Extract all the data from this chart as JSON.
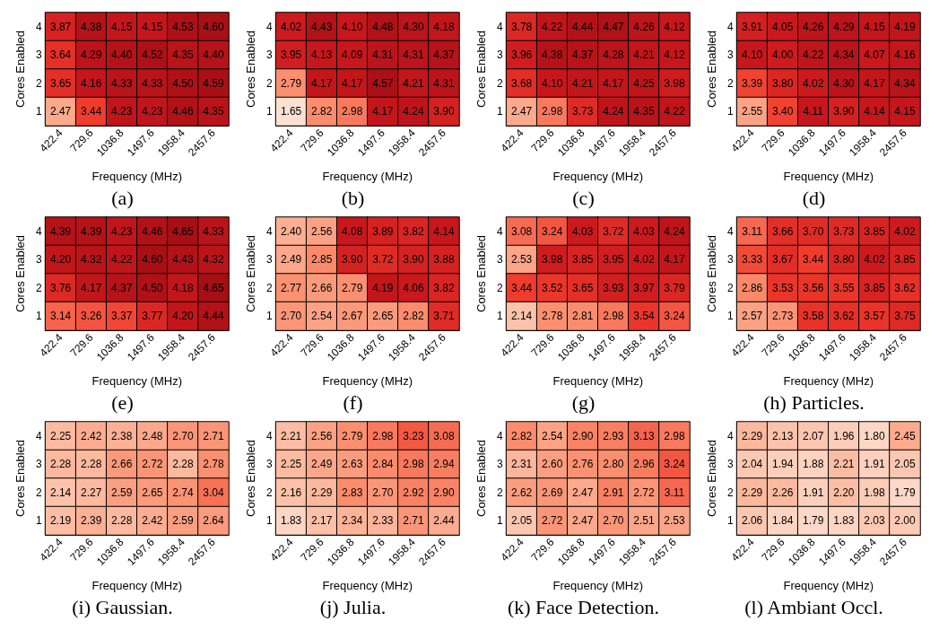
{
  "chart_data": [
    {
      "type": "heatmap",
      "title": "(a)",
      "xlabel": "Frequency (MHz)",
      "ylabel": "Cores Enabled",
      "categories": [
        "422.4",
        "729.6",
        "1036.8",
        "1497.6",
        "1958.4",
        "2457.6"
      ],
      "y_categories": [
        "4",
        "3",
        "2",
        "1"
      ],
      "cells": [
        [
          3.87,
          4.38,
          4.15,
          4.15,
          4.53,
          4.6
        ],
        [
          3.64,
          4.29,
          4.4,
          4.52,
          4.35,
          4.4
        ],
        [
          3.65,
          4.16,
          4.33,
          4.33,
          4.5,
          4.59
        ],
        [
          2.47,
          3.44,
          4.23,
          4.23,
          4.46,
          4.35
        ]
      ],
      "cell_labels": [
        [
          "3.87",
          "4.38",
          "4.15",
          "4.15",
          "4.53",
          "4.60"
        ],
        [
          "3.64",
          "4.29",
          "4.40",
          "4.52",
          "4.35",
          "4.40"
        ],
        [
          "3.65",
          "4.16",
          "4.33",
          "4.33",
          "4.50",
          "4.59"
        ],
        [
          "2.47",
          "3.44",
          "4.23",
          "4.23",
          "4.46",
          "4.35"
        ]
      ]
    },
    {
      "type": "heatmap",
      "title": "(b)",
      "xlabel": "Frequency (MHz)",
      "ylabel": "Cores Enabled",
      "categories": [
        "422.4",
        "729.6",
        "1036.8",
        "1497.6",
        "1958.4",
        "2457.6"
      ],
      "y_categories": [
        "4",
        "3",
        "2",
        "1"
      ],
      "cells": [
        [
          4.02,
          4.43,
          4.1,
          4.48,
          4.3,
          4.18
        ],
        [
          3.95,
          4.13,
          4.09,
          4.31,
          4.31,
          4.37
        ],
        [
          2.79,
          4.17,
          4.17,
          4.57,
          4.21,
          4.31
        ],
        [
          1.65,
          2.82,
          2.98,
          4.17,
          4.24,
          3.9
        ]
      ],
      "cell_labels": [
        [
          "4.02",
          "4.43",
          "4.10",
          "4.48",
          "4.30",
          "4.18"
        ],
        [
          "3.95",
          "4.13",
          "4.09",
          "4.31",
          "4.31",
          "4.37"
        ],
        [
          "2.79",
          "4.17",
          "4.17",
          "4.57",
          "4.21",
          "4.31"
        ],
        [
          "1.65",
          "2.82",
          "2.98",
          "4.17",
          "4.24",
          "3.90"
        ]
      ]
    },
    {
      "type": "heatmap",
      "title": "(c)",
      "xlabel": "Frequency (MHz)",
      "ylabel": "Cores Enabled",
      "categories": [
        "422.4",
        "729.6",
        "1036.8",
        "1497.6",
        "1958.4",
        "2457.6"
      ],
      "y_categories": [
        "4",
        "3",
        "2",
        "1"
      ],
      "cells": [
        [
          3.78,
          4.22,
          4.44,
          4.47,
          4.26,
          4.12
        ],
        [
          3.96,
          4.38,
          4.37,
          4.28,
          4.21,
          4.12
        ],
        [
          3.68,
          4.1,
          4.21,
          4.17,
          4.25,
          3.98
        ],
        [
          2.47,
          2.98,
          3.73,
          4.24,
          4.35,
          4.22
        ]
      ],
      "cell_labels": [
        [
          "3.78",
          "4.22",
          "4.44",
          "4.47",
          "4.26",
          "4.12"
        ],
        [
          "3.96",
          "4.38",
          "4.37",
          "4.28",
          "4.21",
          "4.12"
        ],
        [
          "3.68",
          "4.10",
          "4.21",
          "4.17",
          "4.25",
          "3.98"
        ],
        [
          "2.47",
          "2.98",
          "3.73",
          "4.24",
          "4.35",
          "4.22"
        ]
      ]
    },
    {
      "type": "heatmap",
      "title": "(d)",
      "xlabel": "Frequency (MHz)",
      "ylabel": "Cores Enabled",
      "categories": [
        "422.4",
        "729.6",
        "1036.8",
        "1497.6",
        "1958.4",
        "2457.6"
      ],
      "y_categories": [
        "4",
        "3",
        "2",
        "1"
      ],
      "cells": [
        [
          3.91,
          4.05,
          4.26,
          4.29,
          4.15,
          4.19
        ],
        [
          4.1,
          4.0,
          4.22,
          4.34,
          4.07,
          4.16
        ],
        [
          3.39,
          3.8,
          4.02,
          4.3,
          4.17,
          4.34
        ],
        [
          2.55,
          3.4,
          4.11,
          3.9,
          4.14,
          4.15
        ]
      ],
      "cell_labels": [
        [
          "3.91",
          "4.05",
          "4.26",
          "4.29",
          "4.15",
          "4.19"
        ],
        [
          "4.10",
          "4.00",
          "4.22",
          "4.34",
          "4.07",
          "4.16"
        ],
        [
          "3.39",
          "3.80",
          "4.02",
          "4.30",
          "4.17",
          "4.34"
        ],
        [
          "2.55",
          "3.40",
          "4.11",
          "3.90",
          "4.14",
          "4.15"
        ]
      ]
    },
    {
      "type": "heatmap",
      "title": "(e)",
      "xlabel": "Frequency (MHz)",
      "ylabel": "Cores Enabled",
      "categories": [
        "422.4",
        "729.6",
        "1036.8",
        "1497.6",
        "1958.4",
        "2457.6"
      ],
      "y_categories": [
        "4",
        "3",
        "2",
        "1"
      ],
      "cells": [
        [
          4.39,
          4.39,
          4.23,
          4.46,
          4.65,
          4.33
        ],
        [
          4.2,
          4.32,
          4.22,
          4.6,
          4.43,
          4.32
        ],
        [
          3.76,
          4.17,
          4.37,
          4.5,
          4.18,
          4.65
        ],
        [
          3.14,
          3.26,
          3.37,
          3.77,
          4.2,
          4.44
        ]
      ],
      "cell_labels": [
        [
          "4.39",
          "4.39",
          "4.23",
          "4.46",
          "4.65",
          "4.33"
        ],
        [
          "4.20",
          "4.32",
          "4.22",
          "4.60",
          "4.43",
          "4.32"
        ],
        [
          "3.76",
          "4.17",
          "4.37",
          "4.50",
          "4.18",
          "4.65"
        ],
        [
          "3.14",
          "3.26",
          "3.37",
          "3.77",
          "4.20",
          "4.44"
        ]
      ]
    },
    {
      "type": "heatmap",
      "title": "(f)",
      "xlabel": "Frequency (MHz)",
      "ylabel": "Cores Enabled",
      "categories": [
        "422.4",
        "729.6",
        "1036.8",
        "1497.6",
        "1958.4",
        "2457.6"
      ],
      "y_categories": [
        "4",
        "3",
        "2",
        "1"
      ],
      "cells": [
        [
          2.4,
          2.56,
          4.08,
          3.89,
          3.82,
          4.14
        ],
        [
          2.49,
          2.85,
          3.9,
          3.72,
          3.9,
          3.88
        ],
        [
          2.77,
          2.66,
          2.79,
          4.19,
          4.06,
          3.82
        ],
        [
          2.7,
          2.54,
          2.67,
          2.65,
          2.82,
          3.71
        ]
      ],
      "cell_labels": [
        [
          "2.40",
          "2.56",
          "4.08",
          "3.89",
          "3.82",
          "4.14"
        ],
        [
          "2.49",
          "2.85",
          "3.90",
          "3.72",
          "3.90",
          "3.88"
        ],
        [
          "2.77",
          "2.66",
          "2.79",
          "4.19",
          "4.06",
          "3.82"
        ],
        [
          "2.70",
          "2.54",
          "2.67",
          "2.65",
          "2.82",
          "3.71"
        ]
      ]
    },
    {
      "type": "heatmap",
      "title": "(g)",
      "xlabel": "Frequency (MHz)",
      "ylabel": "Cores Enabled",
      "categories": [
        "422.4",
        "729.6",
        "1036.8",
        "1497.6",
        "1958.4",
        "2457.6"
      ],
      "y_categories": [
        "4",
        "3",
        "2",
        "1"
      ],
      "cells": [
        [
          3.08,
          3.24,
          4.03,
          3.72,
          4.03,
          4.24
        ],
        [
          2.53,
          3.98,
          3.85,
          3.95,
          4.02,
          4.17
        ],
        [
          3.44,
          3.52,
          3.65,
          3.93,
          3.97,
          3.79
        ],
        [
          2.14,
          2.78,
          2.81,
          2.98,
          3.54,
          3.24
        ]
      ],
      "cell_labels": [
        [
          "3.08",
          "3.24",
          "4.03",
          "3.72",
          "4.03",
          "4.24"
        ],
        [
          "2.53",
          "3.98",
          "3.85",
          "3.95",
          "4.02",
          "4.17"
        ],
        [
          "3.44",
          "3.52",
          "3.65",
          "3.93",
          "3.97",
          "3.79"
        ],
        [
          "2.14",
          "2.78",
          "2.81",
          "2.98",
          "3.54",
          "3.24"
        ]
      ]
    },
    {
      "type": "heatmap",
      "title": "(h) Particles.",
      "xlabel": "Frequency (MHz)",
      "ylabel": "Cores Enabled",
      "categories": [
        "422.4",
        "729.6",
        "1036.8",
        "1497.6",
        "1958.4",
        "2457.6"
      ],
      "y_categories": [
        "4",
        "3",
        "2",
        "1"
      ],
      "cells": [
        [
          3.11,
          3.66,
          3.7,
          3.73,
          3.85,
          4.02
        ],
        [
          3.33,
          3.67,
          3.44,
          3.8,
          4.02,
          3.85
        ],
        [
          2.86,
          3.53,
          3.56,
          3.55,
          3.85,
          3.62
        ],
        [
          2.57,
          2.73,
          3.58,
          3.62,
          3.57,
          3.75
        ]
      ],
      "cell_labels": [
        [
          "3.11",
          "3.66",
          "3.70",
          "3.73",
          "3.85",
          "4.02"
        ],
        [
          "3.33",
          "3.67",
          "3.44",
          "3.80",
          "4.02",
          "3.85"
        ],
        [
          "2.86",
          "3.53",
          "3.56",
          "3.55",
          "3.85",
          "3.62"
        ],
        [
          "2.57",
          "2.73",
          "3.58",
          "3.62",
          "3.57",
          "3.75"
        ]
      ]
    },
    {
      "type": "heatmap",
      "title": "(i) Gaussian.",
      "xlabel": "Frequency (MHz)",
      "ylabel": "Cores Enabled",
      "categories": [
        "422.4",
        "729.6",
        "1036.8",
        "1497.6",
        "1958.4",
        "2457.6"
      ],
      "y_categories": [
        "4",
        "3",
        "2",
        "1"
      ],
      "cells": [
        [
          2.25,
          2.42,
          2.38,
          2.48,
          2.7,
          2.71
        ],
        [
          2.28,
          2.28,
          2.66,
          2.72,
          2.28,
          2.78
        ],
        [
          2.14,
          2.27,
          2.59,
          2.65,
          2.74,
          3.04
        ],
        [
          2.19,
          2.39,
          2.28,
          2.42,
          2.59,
          2.64
        ]
      ],
      "cell_labels": [
        [
          "2.25",
          "2.42",
          "2.38",
          "2.48",
          "2.70",
          "2.71"
        ],
        [
          "2.28",
          "2.28",
          "2.66",
          "2.72",
          "2.28",
          "2.78"
        ],
        [
          "2.14",
          "2.27",
          "2.59",
          "2.65",
          "2.74",
          "3.04"
        ],
        [
          "2.19",
          "2.39",
          "2.28",
          "2.42",
          "2.59",
          "2.64"
        ]
      ]
    },
    {
      "type": "heatmap",
      "title": "(j) Julia.",
      "xlabel": "Frequency (MHz)",
      "ylabel": "Cores Enabled",
      "categories": [
        "422.4",
        "729.6",
        "1036.8",
        "1497.6",
        "1958.4",
        "2457.6"
      ],
      "y_categories": [
        "4",
        "3",
        "2",
        "1"
      ],
      "cells": [
        [
          2.21,
          2.56,
          2.79,
          2.98,
          3.23,
          3.08
        ],
        [
          2.25,
          2.49,
          2.63,
          2.84,
          2.98,
          2.94
        ],
        [
          2.16,
          2.29,
          2.83,
          2.7,
          2.92,
          2.9
        ],
        [
          1.83,
          2.17,
          2.34,
          2.33,
          2.71,
          2.44
        ]
      ],
      "cell_labels": [
        [
          "2.21",
          "2.56",
          "2.79",
          "2.98",
          "3.23",
          "3.08"
        ],
        [
          "2.25",
          "2.49",
          "2.63",
          "2.84",
          "2.98",
          "2.94"
        ],
        [
          "2.16",
          "2.29",
          "2.83",
          "2.70",
          "2.92",
          "2.90"
        ],
        [
          "1.83",
          "2.17",
          "2.34",
          "2.33",
          "2.71",
          "2.44"
        ]
      ]
    },
    {
      "type": "heatmap",
      "title": "(k) Face Detection.",
      "xlabel": "Frequency (MHz)",
      "ylabel": "Cores Enabled",
      "categories": [
        "422.4",
        "729.6",
        "1036.8",
        "1497.6",
        "1958.4",
        "2457.6"
      ],
      "y_categories": [
        "4",
        "3",
        "2",
        "1"
      ],
      "cells": [
        [
          2.82,
          2.54,
          2.9,
          2.93,
          3.13,
          2.98
        ],
        [
          2.31,
          2.6,
          2.76,
          2.8,
          2.96,
          3.24
        ],
        [
          2.62,
          2.69,
          2.47,
          2.91,
          2.72,
          3.11
        ],
        [
          2.05,
          2.72,
          2.47,
          2.7,
          2.51,
          2.53
        ]
      ],
      "cell_labels": [
        [
          "2.82",
          "2.54",
          "2.90",
          "2.93",
          "3.13",
          "2.98"
        ],
        [
          "2.31",
          "2.60",
          "2.76",
          "2.80",
          "2.96",
          "3.24"
        ],
        [
          "2.62",
          "2.69",
          "2.47",
          "2.91",
          "2.72",
          "3.11"
        ],
        [
          "2.05",
          "2.72",
          "2.47",
          "2.70",
          "2.51",
          "2.53"
        ]
      ]
    },
    {
      "type": "heatmap",
      "title": "(l) Ambiant Occl.",
      "xlabel": "Frequency (MHz)",
      "ylabel": "Cores Enabled",
      "categories": [
        "422.4",
        "729.6",
        "1036.8",
        "1497.6",
        "1958.4",
        "2457.6"
      ],
      "y_categories": [
        "4",
        "3",
        "2",
        "1"
      ],
      "cells": [
        [
          2.29,
          2.13,
          2.07,
          1.96,
          1.8,
          2.45
        ],
        [
          2.04,
          1.94,
          1.88,
          2.21,
          1.91,
          2.05
        ],
        [
          2.29,
          2.26,
          1.91,
          2.2,
          1.98,
          1.79
        ],
        [
          2.06,
          1.84,
          1.79,
          1.83,
          2.03,
          2.0
        ]
      ],
      "cell_labels": [
        [
          "2.29",
          "2.13",
          "2.07",
          "1.96",
          "1.80",
          "2.45"
        ],
        [
          "2.04",
          "1.94",
          "1.88",
          "2.21",
          "1.91",
          "2.05"
        ],
        [
          "2.29",
          "2.26",
          "1.91",
          "2.20",
          "1.98",
          "1.79"
        ],
        [
          "2.06",
          "1.84",
          "1.79",
          "1.83",
          "2.03",
          "2.00"
        ]
      ]
    }
  ]
}
